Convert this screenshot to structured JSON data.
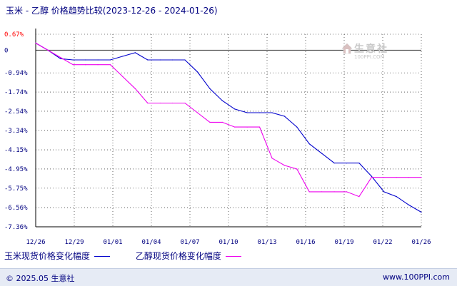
{
  "title": "玉米 - 乙醇 价格趋势比较(2023-12-26 - 2024-01-26)",
  "watermark": {
    "name": "生意社",
    "url": "100PPI.COM"
  },
  "footer": {
    "left": "© 2025.05 生意社",
    "right": "www.100PPI.com"
  },
  "colors": {
    "corn": "#0000cc",
    "ethanol": "#ee00ee",
    "axis": "#000000",
    "grid": "#000000",
    "zero_line": "#555555",
    "top_label": "#ff0000",
    "tick_label": "#000080"
  },
  "chart_data": {
    "type": "line",
    "title": "玉米 - 乙醇 价格趋势比较(2023-12-26 - 2024-01-26)",
    "xlabel": "",
    "ylabel": "",
    "x_ticks": [
      "12/26",
      "12/29",
      "01/01",
      "01/04",
      "01/07",
      "01/10",
      "01/13",
      "01/16",
      "01/19",
      "01/22",
      "01/26"
    ],
    "y_ticks": [
      "0.67%",
      "0",
      "-0.94%",
      "-1.74%",
      "-2.54%",
      "-3.34%",
      "-4.15%",
      "-4.95%",
      "-5.75%",
      "-6.56%",
      "-7.36%"
    ],
    "ylim": [
      -7.36,
      0.67
    ],
    "grid": true,
    "legend_position": "bottom",
    "series": [
      {
        "name": "玉米现货价格变化幅度",
        "color": "#0000cc",
        "x": [
          "12/26",
          "12/27",
          "12/28",
          "12/29",
          "12/30",
          "12/31",
          "01/01",
          "01/02",
          "01/03",
          "01/04",
          "01/05",
          "01/06",
          "01/07",
          "01/08",
          "01/09",
          "01/10",
          "01/11",
          "01/12",
          "01/13",
          "01/14",
          "01/15",
          "01/16",
          "01/17",
          "01/18",
          "01/19",
          "01/20",
          "01/21",
          "01/22",
          "01/23",
          "01/24",
          "01/25",
          "01/26"
        ],
        "y": [
          0.3,
          0.0,
          -0.35,
          -0.4,
          -0.4,
          -0.4,
          -0.4,
          -0.25,
          -0.1,
          -0.4,
          -0.4,
          -0.4,
          -0.4,
          -0.9,
          -1.6,
          -2.1,
          -2.45,
          -2.6,
          -2.6,
          -2.6,
          -2.75,
          -3.2,
          -3.9,
          -4.3,
          -4.7,
          -4.7,
          -4.7,
          -5.25,
          -5.9,
          -6.1,
          -6.45,
          -6.75
        ]
      },
      {
        "name": "乙醇现货价格变化幅度",
        "color": "#ee00ee",
        "x": [
          "12/26",
          "12/27",
          "12/28",
          "12/29",
          "12/30",
          "12/31",
          "01/01",
          "01/02",
          "01/03",
          "01/04",
          "01/05",
          "01/06",
          "01/07",
          "01/08",
          "01/09",
          "01/10",
          "01/11",
          "01/12",
          "01/13",
          "01/14",
          "01/15",
          "01/16",
          "01/17",
          "01/18",
          "01/19",
          "01/20",
          "01/21",
          "01/22",
          "01/23",
          "01/24",
          "01/25",
          "01/26"
        ],
        "y": [
          0.3,
          0.0,
          -0.3,
          -0.6,
          -0.6,
          -0.6,
          -0.6,
          -1.1,
          -1.6,
          -2.2,
          -2.2,
          -2.2,
          -2.2,
          -2.6,
          -3.0,
          -3.0,
          -3.2,
          -3.2,
          -3.2,
          -4.5,
          -4.8,
          -4.95,
          -5.9,
          -5.9,
          -5.9,
          -5.9,
          -6.1,
          -5.3,
          -5.3,
          -5.3,
          -5.3,
          -5.3
        ]
      }
    ]
  },
  "legend": [
    {
      "label": "玉米现货价格变化幅度",
      "color": "#0000cc"
    },
    {
      "label": "乙醇现货价格变化幅度",
      "color": "#ee00ee"
    }
  ]
}
